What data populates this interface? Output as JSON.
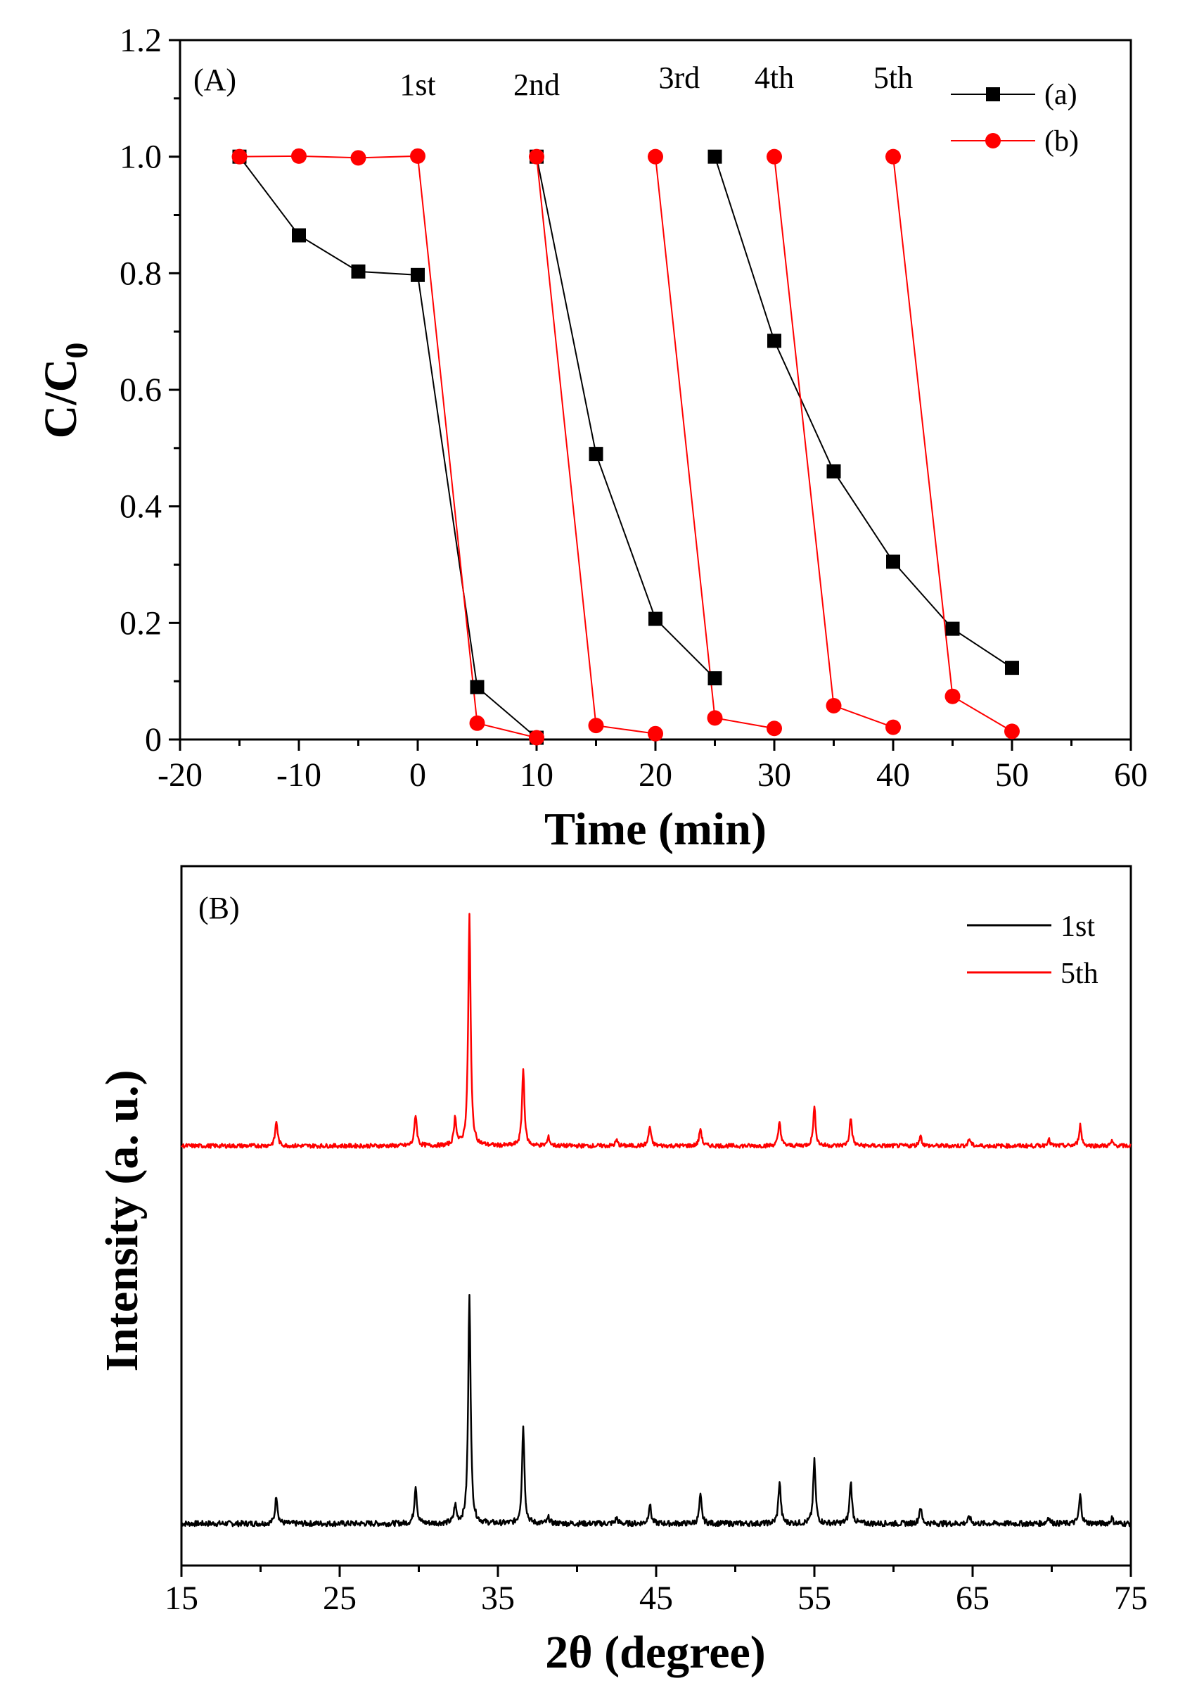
{
  "chart_data": [
    {
      "type": "line",
      "panel_label": "(A)",
      "xlabel": "Time (min)",
      "ylabel": "C/C",
      "ylabel_subscript": "0",
      "xlim": [
        -20,
        60
      ],
      "ylim": [
        0,
        1.2
      ],
      "xticks": [
        "-20",
        "-10",
        "0",
        "10",
        "20",
        "30",
        "40",
        "50",
        "60"
      ],
      "yticks": [
        "0",
        "0.2",
        "0.4",
        "0.6",
        "0.8",
        "1.0",
        "1.2"
      ],
      "cycle_labels": [
        {
          "text": "1st",
          "x": 0
        },
        {
          "text": "2nd",
          "x": 10
        },
        {
          "text": "3rd",
          "x": 22
        },
        {
          "text": "4th",
          "x": 30
        },
        {
          "text": "5th",
          "x": 40
        }
      ],
      "series": [
        {
          "name": "(a)",
          "color": "#000000",
          "marker": "square",
          "segments": [
            [
              [
                -15,
                1.0
              ],
              [
                -10,
                0.865
              ],
              [
                -5,
                0.803
              ],
              [
                0,
                0.797
              ],
              [
                5,
                0.09
              ],
              [
                10,
                0.003
              ]
            ],
            [
              [
                10,
                1.0
              ],
              [
                15,
                0.49
              ],
              [
                20,
                0.207
              ],
              [
                25,
                0.105
              ]
            ],
            [
              [
                25,
                1.0
              ],
              [
                30,
                0.684
              ],
              [
                35,
                0.46
              ],
              [
                40,
                0.305
              ],
              [
                45,
                0.19
              ],
              [
                50,
                0.123
              ]
            ]
          ]
        },
        {
          "name": "(b)",
          "color": "#ff0000",
          "marker": "circle",
          "segments": [
            [
              [
                -15,
                1.0
              ],
              [
                -10,
                1.001
              ],
              [
                -5,
                0.998
              ],
              [
                0,
                1.001
              ],
              [
                5,
                0.028
              ],
              [
                10,
                0.003
              ]
            ],
            [
              [
                10,
                1.0
              ],
              [
                15,
                0.024
              ],
              [
                20,
                0.01
              ]
            ],
            [
              [
                20,
                1.0
              ],
              [
                25,
                0.037
              ],
              [
                30,
                0.019
              ]
            ],
            [
              [
                30,
                1.0
              ],
              [
                35,
                0.058
              ],
              [
                40,
                0.021
              ]
            ],
            [
              [
                40,
                1.0
              ],
              [
                45,
                0.074
              ],
              [
                50,
                0.014
              ]
            ]
          ]
        }
      ]
    },
    {
      "type": "line",
      "panel_label": "(B)",
      "xlabel": "2θ (degree)",
      "ylabel": "Intensity (a. u.)",
      "xlim": [
        15,
        75
      ],
      "xticks": [
        "15",
        "25",
        "35",
        "45",
        "55",
        "65",
        "75"
      ],
      "series": [
        {
          "name": "1st",
          "color": "#000000",
          "baseline": 0.06,
          "noise": 0.004
        },
        {
          "name": "5th",
          "color": "#ff0000",
          "baseline": 0.6,
          "noise": 0.003
        }
      ],
      "peaks": [
        {
          "x": 21.0,
          "h1": 0.04,
          "h5": 0.035
        },
        {
          "x": 29.8,
          "h1": 0.055,
          "h5": 0.045
        },
        {
          "x": 32.3,
          "h1": 0.025,
          "h5": 0.04
        },
        {
          "x": 33.2,
          "h1": 0.33,
          "h5": 0.33
        },
        {
          "x": 36.6,
          "h1": 0.14,
          "h5": 0.11
        },
        {
          "x": 38.2,
          "h1": 0.008,
          "h5": 0.012
        },
        {
          "x": 42.5,
          "h1": 0.008,
          "h5": 0.008
        },
        {
          "x": 44.6,
          "h1": 0.028,
          "h5": 0.028
        },
        {
          "x": 47.8,
          "h1": 0.04,
          "h5": 0.025
        },
        {
          "x": 52.8,
          "h1": 0.06,
          "h5": 0.035
        },
        {
          "x": 55.0,
          "h1": 0.09,
          "h5": 0.055
        },
        {
          "x": 57.3,
          "h1": 0.06,
          "h5": 0.04
        },
        {
          "x": 61.7,
          "h1": 0.024,
          "h5": 0.015
        },
        {
          "x": 64.8,
          "h1": 0.01,
          "h5": 0.01
        },
        {
          "x": 69.8,
          "h1": 0.01,
          "h5": 0.01
        },
        {
          "x": 71.8,
          "h1": 0.04,
          "h5": 0.03
        },
        {
          "x": 73.8,
          "h1": 0.008,
          "h5": 0.006
        }
      ]
    }
  ]
}
